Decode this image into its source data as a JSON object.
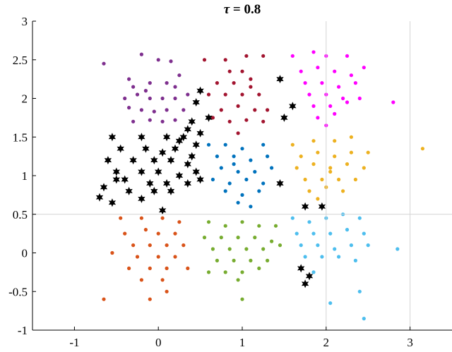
{
  "chart_data": {
    "type": "scatter",
    "title": "τ = 0.8",
    "title_symbol": "τ",
    "title_rest": " = 0.8",
    "xlim": [
      -1.5,
      3.5
    ],
    "ylim": [
      -1,
      3
    ],
    "x_ticks": [
      -1,
      0,
      1,
      2,
      3
    ],
    "y_ticks": [
      -1,
      -0.5,
      0,
      0.5,
      1,
      1.5,
      2,
      2.5,
      3
    ],
    "x_tick_labels": [
      "-1",
      "0",
      "1",
      "2",
      "3"
    ],
    "y_tick_labels": [
      "-1",
      "-0.5",
      "0",
      "0.5",
      "1",
      "1.5",
      "2",
      "2.5",
      "3"
    ],
    "reference_lines": {
      "vertical_x": [
        2,
        3
      ],
      "horizontal_y": [
        0.5
      ]
    },
    "grid": false,
    "legend": "none",
    "series": [
      {
        "color": "#7E2F8E",
        "marker": "dot",
        "points": [
          [
            -0.65,
            2.45
          ],
          [
            -0.2,
            2.57
          ],
          [
            0.0,
            2.5
          ],
          [
            0.15,
            2.48
          ],
          [
            -0.35,
            2.25
          ],
          [
            -0.1,
            2.2
          ],
          [
            0.1,
            2.2
          ],
          [
            0.2,
            2.15
          ],
          [
            -0.4,
            2.0
          ],
          [
            -0.25,
            2.05
          ],
          [
            -0.1,
            2.0
          ],
          [
            0.05,
            2.0
          ],
          [
            0.2,
            2.0
          ],
          [
            0.35,
            2.05
          ],
          [
            -0.35,
            1.88
          ],
          [
            -0.2,
            1.85
          ],
          [
            -0.05,
            1.83
          ],
          [
            0.1,
            1.85
          ],
          [
            0.3,
            1.85
          ],
          [
            -0.3,
            1.7
          ],
          [
            -0.1,
            1.72
          ],
          [
            0.05,
            1.7
          ],
          [
            0.2,
            1.72
          ],
          [
            -0.15,
            2.1
          ],
          [
            0.25,
            2.3
          ],
          [
            -0.3,
            2.15
          ]
        ]
      },
      {
        "color": "#A2142F",
        "marker": "dot",
        "points": [
          [
            0.55,
            2.5
          ],
          [
            0.8,
            2.5
          ],
          [
            1.05,
            2.55
          ],
          [
            1.25,
            2.55
          ],
          [
            0.85,
            2.35
          ],
          [
            1.0,
            2.35
          ],
          [
            0.7,
            2.2
          ],
          [
            0.9,
            2.2
          ],
          [
            1.1,
            2.25
          ],
          [
            0.6,
            2.05
          ],
          [
            0.8,
            2.05
          ],
          [
            1.0,
            2.05
          ],
          [
            1.2,
            2.05
          ],
          [
            0.75,
            1.85
          ],
          [
            0.95,
            1.9
          ],
          [
            1.15,
            1.85
          ],
          [
            1.3,
            1.85
          ],
          [
            0.85,
            1.7
          ],
          [
            1.05,
            1.72
          ],
          [
            1.25,
            1.7
          ],
          [
            0.95,
            1.55
          ],
          [
            1.1,
            2.15
          ],
          [
            0.65,
            1.75
          ]
        ]
      },
      {
        "color": "#FF00FF",
        "marker": "dot",
        "points": [
          [
            1.6,
            2.55
          ],
          [
            1.85,
            2.6
          ],
          [
            2.0,
            2.55
          ],
          [
            2.25,
            2.55
          ],
          [
            1.7,
            2.35
          ],
          [
            1.9,
            2.4
          ],
          [
            2.1,
            2.35
          ],
          [
            2.3,
            2.3
          ],
          [
            2.45,
            2.4
          ],
          [
            1.75,
            2.2
          ],
          [
            1.95,
            2.2
          ],
          [
            2.15,
            2.15
          ],
          [
            2.35,
            2.2
          ],
          [
            1.8,
            2.05
          ],
          [
            2.0,
            2.05
          ],
          [
            2.2,
            2.0
          ],
          [
            2.4,
            2.0
          ],
          [
            1.85,
            1.9
          ],
          [
            2.05,
            1.9
          ],
          [
            2.25,
            1.95
          ],
          [
            1.9,
            1.75
          ],
          [
            2.1,
            1.8
          ],
          [
            2.8,
            1.95
          ],
          [
            2.0,
            1.65
          ]
        ]
      },
      {
        "color": "#EDB120",
        "marker": "dot",
        "points": [
          [
            1.6,
            1.4
          ],
          [
            1.85,
            1.45
          ],
          [
            2.1,
            1.45
          ],
          [
            2.3,
            1.5
          ],
          [
            1.7,
            1.25
          ],
          [
            1.9,
            1.3
          ],
          [
            2.1,
            1.25
          ],
          [
            2.3,
            1.3
          ],
          [
            2.5,
            1.3
          ],
          [
            1.65,
            1.1
          ],
          [
            1.85,
            1.15
          ],
          [
            2.05,
            1.1
          ],
          [
            2.25,
            1.15
          ],
          [
            2.45,
            1.1
          ],
          [
            1.75,
            0.95
          ],
          [
            1.95,
            0.95
          ],
          [
            2.15,
            0.95
          ],
          [
            2.35,
            0.95
          ],
          [
            1.8,
            0.8
          ],
          [
            2.0,
            0.85
          ],
          [
            2.2,
            0.8
          ],
          [
            1.9,
            0.7
          ],
          [
            3.15,
            1.35
          ],
          [
            2.05,
            1.05
          ]
        ]
      },
      {
        "color": "#0072BD",
        "marker": "dot",
        "points": [
          [
            0.6,
            1.4
          ],
          [
            0.8,
            1.4
          ],
          [
            1.0,
            1.35
          ],
          [
            1.25,
            1.4
          ],
          [
            0.7,
            1.25
          ],
          [
            0.9,
            1.25
          ],
          [
            1.1,
            1.2
          ],
          [
            1.3,
            1.25
          ],
          [
            0.75,
            1.1
          ],
          [
            0.95,
            1.05
          ],
          [
            1.15,
            1.05
          ],
          [
            1.35,
            1.1
          ],
          [
            0.65,
            0.95
          ],
          [
            0.85,
            0.9
          ],
          [
            1.05,
            0.95
          ],
          [
            1.25,
            0.9
          ],
          [
            0.8,
            0.8
          ],
          [
            1.0,
            0.75
          ],
          [
            1.2,
            0.8
          ],
          [
            0.95,
            0.65
          ],
          [
            1.1,
            0.6
          ],
          [
            0.9,
            1.15
          ]
        ]
      },
      {
        "color": "#4DBEEE",
        "marker": "dot",
        "points": [
          [
            1.6,
            0.45
          ],
          [
            1.8,
            0.4
          ],
          [
            2.0,
            0.45
          ],
          [
            2.2,
            0.5
          ],
          [
            2.4,
            0.45
          ],
          [
            1.65,
            0.25
          ],
          [
            1.85,
            0.25
          ],
          [
            2.05,
            0.25
          ],
          [
            2.25,
            0.3
          ],
          [
            2.45,
            0.25
          ],
          [
            1.7,
            0.1
          ],
          [
            1.9,
            0.1
          ],
          [
            2.1,
            0.05
          ],
          [
            2.3,
            0.1
          ],
          [
            2.5,
            0.1
          ],
          [
            1.75,
            -0.05
          ],
          [
            1.95,
            -0.05
          ],
          [
            2.15,
            -0.05
          ],
          [
            2.35,
            -0.1
          ],
          [
            2.85,
            0.05
          ],
          [
            2.4,
            -0.5
          ],
          [
            2.45,
            -0.85
          ],
          [
            2.05,
            -0.65
          ],
          [
            1.85,
            -0.25
          ]
        ]
      },
      {
        "color": "#D95319",
        "marker": "dot",
        "points": [
          [
            -0.45,
            0.45
          ],
          [
            -0.2,
            0.45
          ],
          [
            0.05,
            0.45
          ],
          [
            0.25,
            0.4
          ],
          [
            -0.4,
            0.25
          ],
          [
            -0.15,
            0.3
          ],
          [
            0.0,
            0.25
          ],
          [
            0.2,
            0.25
          ],
          [
            -0.3,
            0.1
          ],
          [
            -0.1,
            0.1
          ],
          [
            0.1,
            0.1
          ],
          [
            0.3,
            0.1
          ],
          [
            -0.55,
            0.0
          ],
          [
            -0.25,
            -0.05
          ],
          [
            0.0,
            -0.05
          ],
          [
            0.2,
            -0.05
          ],
          [
            -0.35,
            -0.2
          ],
          [
            -0.1,
            -0.2
          ],
          [
            0.1,
            -0.2
          ],
          [
            0.35,
            -0.2
          ],
          [
            -0.2,
            -0.35
          ],
          [
            0.05,
            -0.35
          ],
          [
            -0.65,
            -0.6
          ],
          [
            -0.1,
            -0.6
          ],
          [
            0.1,
            -0.5
          ]
        ]
      },
      {
        "color": "#77AC30",
        "marker": "dot",
        "points": [
          [
            0.6,
            0.4
          ],
          [
            0.8,
            0.35
          ],
          [
            1.0,
            0.4
          ],
          [
            1.2,
            0.35
          ],
          [
            1.4,
            0.35
          ],
          [
            0.55,
            0.2
          ],
          [
            0.75,
            0.2
          ],
          [
            0.95,
            0.2
          ],
          [
            1.15,
            0.2
          ],
          [
            1.35,
            0.15
          ],
          [
            0.65,
            0.05
          ],
          [
            0.85,
            0.05
          ],
          [
            1.05,
            0.05
          ],
          [
            1.25,
            0.05
          ],
          [
            1.45,
            0.1
          ],
          [
            0.7,
            -0.1
          ],
          [
            0.9,
            -0.1
          ],
          [
            1.1,
            -0.1
          ],
          [
            1.3,
            -0.1
          ],
          [
            0.8,
            -0.25
          ],
          [
            1.0,
            -0.25
          ],
          [
            1.2,
            -0.2
          ],
          [
            0.95,
            -0.35
          ],
          [
            0.6,
            -0.25
          ],
          [
            1.0,
            -0.6
          ]
        ]
      },
      {
        "color": "#000000",
        "marker": "star",
        "points": [
          [
            0.5,
            2.1
          ],
          [
            0.45,
            1.95
          ],
          [
            0.6,
            1.75
          ],
          [
            0.4,
            1.7
          ],
          [
            0.35,
            1.6
          ],
          [
            0.5,
            1.55
          ],
          [
            0.3,
            1.5
          ],
          [
            0.45,
            1.4
          ],
          [
            -0.55,
            1.5
          ],
          [
            -0.2,
            1.5
          ],
          [
            0.1,
            1.5
          ],
          [
            0.25,
            1.45
          ],
          [
            -0.45,
            1.35
          ],
          [
            -0.15,
            1.35
          ],
          [
            0.05,
            1.3
          ],
          [
            0.2,
            1.35
          ],
          [
            0.4,
            1.25
          ],
          [
            -0.6,
            1.2
          ],
          [
            -0.3,
            1.2
          ],
          [
            -0.05,
            1.2
          ],
          [
            0.15,
            1.2
          ],
          [
            0.35,
            1.15
          ],
          [
            -0.5,
            1.05
          ],
          [
            -0.2,
            1.05
          ],
          [
            0.0,
            1.05
          ],
          [
            0.25,
            1.0
          ],
          [
            -0.4,
            0.95
          ],
          [
            -0.1,
            0.9
          ],
          [
            0.1,
            0.9
          ],
          [
            0.35,
            0.9
          ],
          [
            -0.65,
            0.85
          ],
          [
            -0.35,
            0.8
          ],
          [
            -0.05,
            0.8
          ],
          [
            0.15,
            0.8
          ],
          [
            -0.55,
            0.65
          ],
          [
            -0.2,
            0.7
          ],
          [
            0.05,
            0.55
          ],
          [
            -0.7,
            0.72
          ],
          [
            0.5,
            0.95
          ],
          [
            1.45,
            2.25
          ],
          [
            1.5,
            1.75
          ],
          [
            1.6,
            1.9
          ],
          [
            1.45,
            0.9
          ],
          [
            1.75,
            0.6
          ],
          [
            1.95,
            0.6
          ],
          [
            1.7,
            -0.2
          ],
          [
            1.8,
            -0.3
          ],
          [
            1.75,
            -0.4
          ],
          [
            -0.5,
            0.95
          ],
          [
            0.45,
            1.05
          ]
        ]
      }
    ]
  }
}
